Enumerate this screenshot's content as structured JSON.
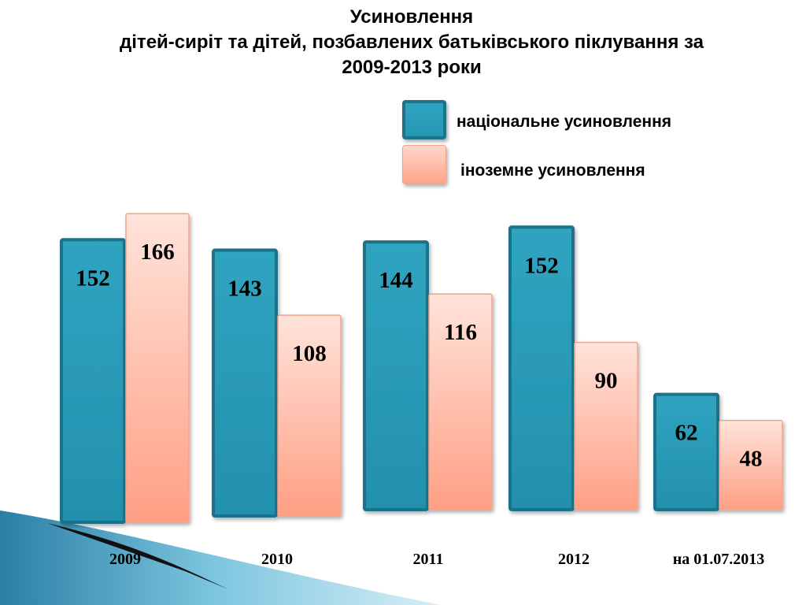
{
  "title": {
    "line1": "Усиновлення",
    "line2": "дітей-сиріт та дітей, позбавлених батьківського піклування за",
    "line3": "2009-2013 роки"
  },
  "legend": {
    "national": "національне усиновлення",
    "foreign": "іноземне усиновлення"
  },
  "colors": {
    "national": "#2596b3",
    "national_border": "#1f7389",
    "foreign": "#ffb9a6",
    "foreign_border": "#f2a38c"
  },
  "chart_data": {
    "type": "bar",
    "title": "Усиновлення дітей-сиріт та дітей, позбавлених батьківського піклування за 2009-2013 роки",
    "categories": [
      "2009",
      "2010",
      "2011",
      "2012",
      "на 01.07.2013"
    ],
    "series": [
      {
        "name": "національне усиновлення",
        "values": [
          152,
          143,
          144,
          152,
          62
        ]
      },
      {
        "name": "іноземне усиновлення",
        "values": [
          166,
          108,
          116,
          90,
          48
        ]
      }
    ],
    "legend_position": "top-right",
    "grid": false,
    "data_labels": true
  }
}
